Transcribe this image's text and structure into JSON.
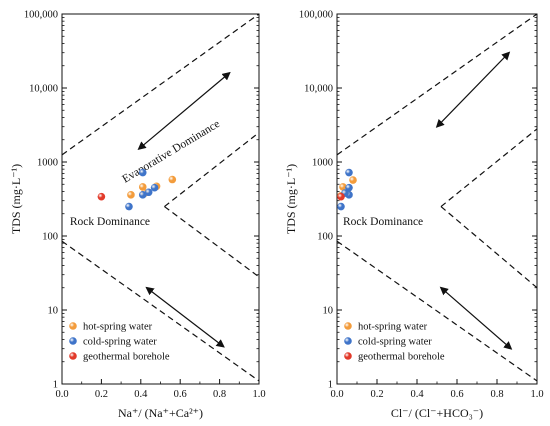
{
  "chart_data": [
    {
      "type": "scatter",
      "ylabel": "TDS (mg·L⁻¹)",
      "xlabel": "Na⁺/ (Na⁺+Ca²⁺)",
      "xlim": [
        0,
        1
      ],
      "ylim": [
        1,
        100000
      ],
      "yscale": "log",
      "xticks": [
        "0.0",
        "0.2",
        "0.4",
        "0.6",
        "0.8",
        "1.0"
      ],
      "yticks": [
        "1",
        "10",
        "100",
        "1000",
        "10,000",
        "100,000"
      ],
      "legend_position": "bottom-left",
      "annotations": [
        "Evaporative Dominance",
        "Rock Dominance"
      ],
      "series": [
        {
          "name": "hot-spring water",
          "color": "#f39c3c",
          "points": [
            [
              0.35,
              360
            ],
            [
              0.41,
              460
            ],
            [
              0.48,
              470
            ],
            [
              0.56,
              580
            ],
            [
              0.42,
              380
            ]
          ]
        },
        {
          "name": "cold-spring water",
          "color": "#3f74c9",
          "points": [
            [
              0.34,
              250
            ],
            [
              0.41,
              720
            ],
            [
              0.41,
              360
            ],
            [
              0.44,
              390
            ],
            [
              0.47,
              450
            ]
          ]
        },
        {
          "name": "geothermal borehole",
          "color": "#e23a2a",
          "points": [
            [
              0.2,
              340
            ]
          ]
        }
      ]
    },
    {
      "type": "scatter",
      "ylabel": "TDS (mg·L⁻¹)",
      "xlabel": "Cl⁻/ (Cl⁻+HCO₃⁻)",
      "xlim": [
        0,
        1
      ],
      "ylim": [
        1,
        100000
      ],
      "yscale": "log",
      "xticks": [
        "0.0",
        "0.2",
        "0.4",
        "0.6",
        "0.8",
        "1.0"
      ],
      "yticks": [
        "1",
        "10",
        "100",
        "1000",
        "10,000",
        "100,000"
      ],
      "legend_position": "bottom-left",
      "annotations": [
        "Rock Dominance"
      ],
      "series": [
        {
          "name": "hot-spring water",
          "color": "#f39c3c",
          "points": [
            [
              0.03,
              460
            ],
            [
              0.08,
              570
            ],
            [
              0.05,
              400
            ],
            [
              0.02,
              350
            ]
          ]
        },
        {
          "name": "cold-spring water",
          "color": "#3f74c9",
          "points": [
            [
              0.06,
              720
            ],
            [
              0.06,
              450
            ],
            [
              0.06,
              360
            ],
            [
              0.02,
              250
            ],
            [
              0.04,
              380
            ]
          ]
        },
        {
          "name": "geothermal borehole",
          "color": "#e23a2a",
          "points": [
            [
              0.02,
              340
            ]
          ]
        }
      ]
    }
  ]
}
